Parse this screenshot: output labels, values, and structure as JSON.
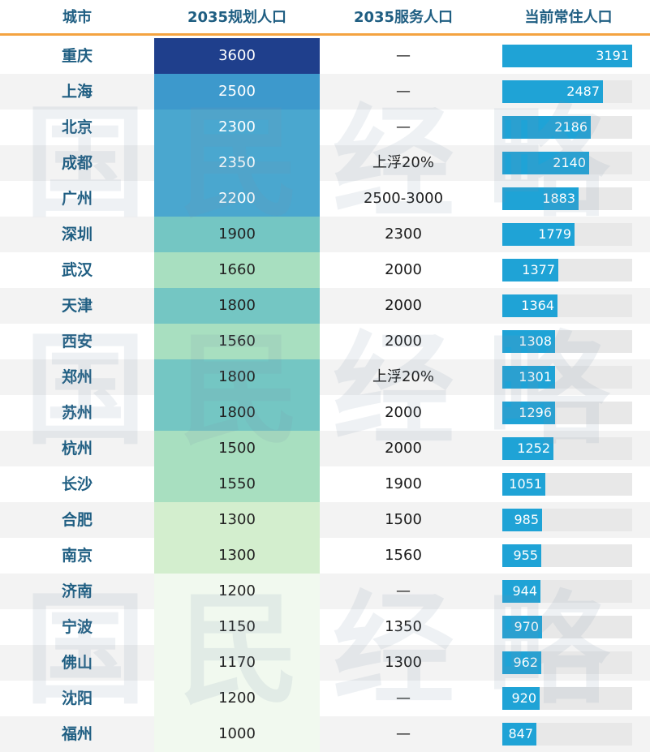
{
  "chart_data": {
    "type": "table",
    "columns": [
      "城市",
      "2035规划人口",
      "2035服务人口",
      "当前常住人口"
    ],
    "rows": [
      {
        "city": "重庆",
        "planned": 3600,
        "service": "—",
        "current": 3191
      },
      {
        "city": "上海",
        "planned": 2500,
        "service": "—",
        "current": 2487
      },
      {
        "city": "北京",
        "planned": 2300,
        "service": "—",
        "current": 2186
      },
      {
        "city": "成都",
        "planned": 2350,
        "service": "上浮20%",
        "current": 2140
      },
      {
        "city": "广州",
        "planned": 2200,
        "service": "2500-3000",
        "current": 1883
      },
      {
        "city": "深圳",
        "planned": 1900,
        "service": "2300",
        "current": 1779
      },
      {
        "city": "武汉",
        "planned": 1660,
        "service": "2000",
        "current": 1377
      },
      {
        "city": "天津",
        "planned": 1800,
        "service": "2000",
        "current": 1364
      },
      {
        "city": "西安",
        "planned": 1560,
        "service": "2000",
        "current": 1308
      },
      {
        "city": "郑州",
        "planned": 1800,
        "service": "上浮20%",
        "current": 1301
      },
      {
        "city": "苏州",
        "planned": 1800,
        "service": "2000",
        "current": 1296
      },
      {
        "city": "杭州",
        "planned": 1500,
        "service": "2000",
        "current": 1252
      },
      {
        "city": "长沙",
        "planned": 1550,
        "service": "1900",
        "current": 1051
      },
      {
        "city": "合肥",
        "planned": 1300,
        "service": "1500",
        "current": 985
      },
      {
        "city": "南京",
        "planned": 1300,
        "service": "1560",
        "current": 955
      },
      {
        "city": "济南",
        "planned": 1200,
        "service": "—",
        "current": 944
      },
      {
        "city": "宁波",
        "planned": 1150,
        "service": "1350",
        "current": 970
      },
      {
        "city": "佛山",
        "planned": 1170,
        "service": "1300",
        "current": 962
      },
      {
        "city": "沈阳",
        "planned": 1200,
        "service": "—",
        "current": 920
      },
      {
        "city": "福州",
        "planned": 1000,
        "service": "—",
        "current": 847
      }
    ],
    "current_bar_max": 3400,
    "colors": {
      "header_text": "#1f5e82",
      "header_rule": "#f4a340",
      "bar": "#1fa3d6",
      "bar_track": "#e8e8e8",
      "row_alt": "#f3f3f3",
      "heat_scale": [
        "#f1f9ef",
        "#d3eece",
        "#a8dfc0",
        "#74c6c3",
        "#4aa7cf",
        "#2478b8",
        "#1f3f8c"
      ]
    }
  },
  "watermark": "国民经略"
}
